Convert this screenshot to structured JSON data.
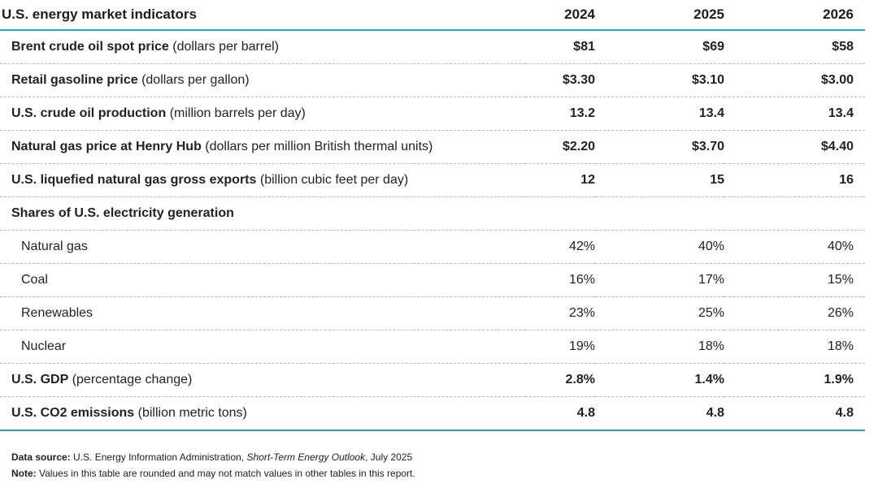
{
  "table": {
    "title": "U.S. energy market indicators",
    "years": [
      "2024",
      "2025",
      "2026"
    ],
    "rows": [
      {
        "label": "Brent crude oil spot price",
        "unit": "(dollars per barrel)",
        "values": [
          "$81",
          "$69",
          "$58"
        ]
      },
      {
        "label": "Retail gasoline price",
        "unit": "(dollars per gallon)",
        "values": [
          "$3.30",
          "$3.10",
          "$3.00"
        ]
      },
      {
        "label": "U.S. crude oil production",
        "unit": "(million barrels per day)",
        "values": [
          "13.2",
          "13.4",
          "13.4"
        ]
      },
      {
        "label": "Natural gas price at Henry Hub",
        "unit": "(dollars per million British thermal units)",
        "values": [
          "$2.20",
          "$3.70",
          "$4.40"
        ]
      },
      {
        "label": "U.S. liquefied natural gas gross exports",
        "unit": "(billion cubic feet per day)",
        "values": [
          "12",
          "15",
          "16"
        ]
      }
    ],
    "shares_header": "Shares of U.S. electricity generation",
    "shares": [
      {
        "label": "Natural gas",
        "values": [
          "42%",
          "40%",
          "40%"
        ]
      },
      {
        "label": "Coal",
        "values": [
          "16%",
          "17%",
          "15%"
        ]
      },
      {
        "label": "Renewables",
        "values": [
          "23%",
          "25%",
          "26%"
        ]
      },
      {
        "label": "Nuclear",
        "values": [
          "19%",
          "18%",
          "18%"
        ]
      }
    ],
    "tail_rows": [
      {
        "label": "U.S. GDP",
        "unit": "(percentage change)",
        "values": [
          "2.8%",
          "1.4%",
          "1.9%"
        ]
      },
      {
        "label": "U.S. CO2 emissions",
        "unit": "(billion metric tons)",
        "values": [
          "4.8",
          "4.8",
          "4.8"
        ]
      }
    ]
  },
  "footnotes": {
    "source_label": "Data source:",
    "source_text": "U.S. Energy Information Administration,",
    "source_title": "Short-Term Energy Outlook",
    "source_date": ", July 2025",
    "note_label": "Note:",
    "note_text": "Values in this table are rounded and may not match values in other tables in this report."
  },
  "colors": {
    "accent_rule": "#2a9fd8",
    "text": "#222222",
    "divider": "#b9b9b9"
  }
}
